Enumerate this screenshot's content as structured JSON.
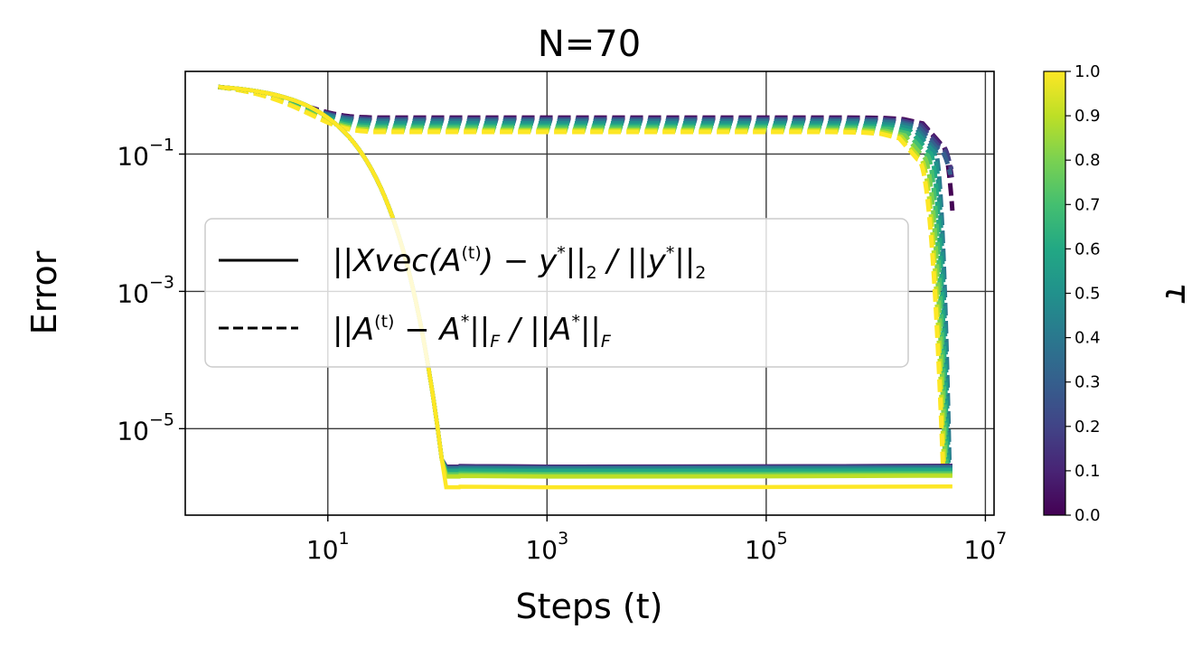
{
  "chart_data": {
    "type": "line",
    "title": "N=70",
    "xlabel": "Steps (t)",
    "ylabel": "Error",
    "x_scale": "log",
    "y_scale": "log",
    "xlim": [
      0.5,
      12000000
    ],
    "ylim": [
      5.5e-07,
      1.6
    ],
    "x_ticks": [
      {
        "value": 10,
        "base": "10",
        "exp": "1"
      },
      {
        "value": 1000,
        "base": "10",
        "exp": "3"
      },
      {
        "value": 100000,
        "base": "10",
        "exp": "5"
      },
      {
        "value": 10000000,
        "base": "10",
        "exp": "7"
      }
    ],
    "y_ticks": [
      {
        "value": 0.1,
        "base": "10",
        "exp": "−1"
      },
      {
        "value": 0.001,
        "base": "10",
        "exp": "−3"
      },
      {
        "value": 1e-05,
        "base": "10",
        "exp": "−5"
      }
    ],
    "grid": true,
    "legend": {
      "placement": "center-left",
      "entries": [
        {
          "style": "solid",
          "label": "||Xvec(A^(t)) − y*||_2 / ||y*||_2"
        },
        {
          "style": "dashed",
          "label": "||A^(t) − A*||_F / ||A*||_F"
        }
      ]
    },
    "colorbar": {
      "label": "τ",
      "colormap": "viridis",
      "range": [
        0.0,
        1.0
      ],
      "ticks": [
        "0.0",
        "0.1",
        "0.2",
        "0.3",
        "0.4",
        "0.5",
        "0.6",
        "0.7",
        "0.8",
        "0.9",
        "1.0"
      ]
    },
    "series_groups": [
      {
        "style": "dashed",
        "metric": "parameter error",
        "tau": [
          0.0,
          0.1,
          0.2,
          0.3,
          0.4,
          0.5,
          0.6,
          0.7,
          0.8,
          0.9,
          1.0
        ],
        "plateau": [
          0.34,
          0.33,
          0.32,
          0.31,
          0.3,
          0.28,
          0.26,
          0.245,
          0.23,
          0.22,
          0.21
        ],
        "drop_start_t": [
          4000000,
          4000000,
          3800000,
          3600000,
          3400000,
          3300000,
          3100000,
          2900000,
          2700000,
          2500000,
          2400000
        ],
        "final_t": [
          5000000,
          5000000,
          4900000,
          4800000,
          4700000,
          4600000,
          4500000,
          4400000,
          4300000,
          4200000,
          4100000
        ],
        "final_value": [
          0.015,
          0.04,
          0.06,
          0.05,
          3e-06,
          3e-06,
          3e-06,
          3e-06,
          3e-06,
          3e-06,
          3e-06
        ],
        "start_value": 0.95,
        "start_t": 1
      },
      {
        "style": "solid",
        "metric": "relative residual",
        "tau": [
          0.0,
          0.1,
          0.2,
          0.3,
          0.4,
          0.5,
          0.6,
          0.7,
          0.8,
          0.9,
          1.0
        ],
        "start_t": 1,
        "start_value": 0.95,
        "drop_end_t": 160,
        "plateau": [
          2.8e-06,
          2.8e-06,
          2.7e-06,
          2.7e-06,
          2.6e-06,
          2.5e-06,
          2.4e-06,
          2.2e-06,
          2.1e-06,
          2e-06,
          1.4e-06
        ],
        "end_t": 5000000
      }
    ]
  }
}
